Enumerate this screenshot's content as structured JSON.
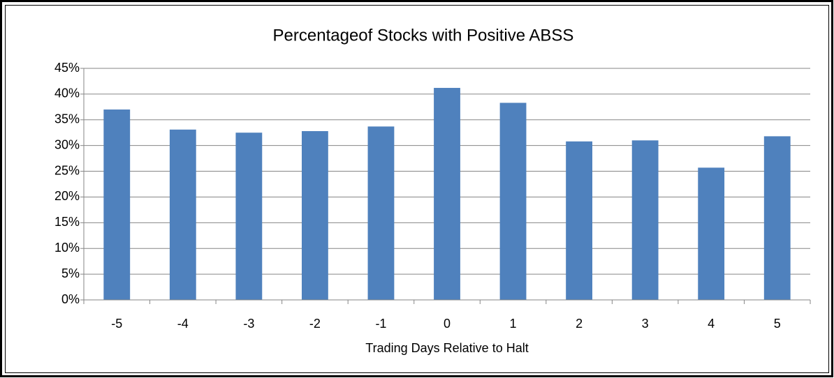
{
  "chart_data": {
    "type": "bar",
    "title": "Percentageof Stocks with Positive ABSS",
    "x_label": "Trading Days Relative to Halt",
    "categories": [
      "-5",
      "-4",
      "-3",
      "-2",
      "-1",
      "0",
      "1",
      "2",
      "3",
      "4",
      "5"
    ],
    "values": [
      37.0,
      33.1,
      32.5,
      32.8,
      33.7,
      41.2,
      38.3,
      30.8,
      31.0,
      25.7,
      31.8
    ],
    "color": "#4f81bd",
    "ylim": [
      0,
      45
    ],
    "yticks": [
      {
        "value": 0,
        "label": "0%"
      },
      {
        "value": 5,
        "label": "5%"
      },
      {
        "value": 10,
        "label": "10%"
      },
      {
        "value": 15,
        "label": "15%"
      },
      {
        "value": 20,
        "label": "20%"
      },
      {
        "value": 25,
        "label": "25%"
      },
      {
        "value": 30,
        "label": "30%"
      },
      {
        "value": 35,
        "label": "35%"
      },
      {
        "value": 40,
        "label": "40%"
      },
      {
        "value": 45,
        "label": "45%"
      }
    ],
    "grid": true
  }
}
